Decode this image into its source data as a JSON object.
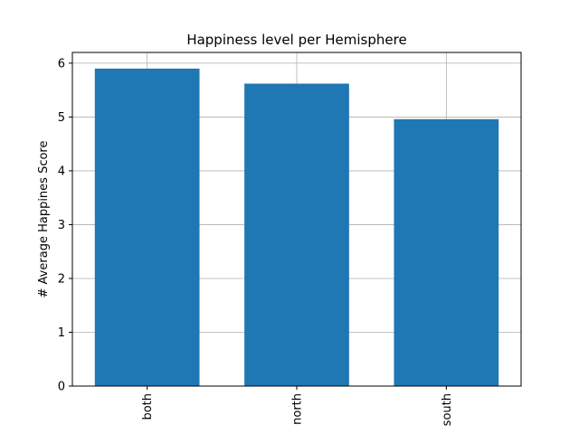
{
  "chart_data": {
    "type": "bar",
    "title": "Happiness level per Hemisphere",
    "xlabel": "",
    "ylabel": "# Average Happines Score",
    "categories": [
      "both",
      "north",
      "south"
    ],
    "values": [
      5.9,
      5.62,
      4.96
    ],
    "ylim": [
      0,
      6.2
    ],
    "yticks": [
      0,
      1,
      2,
      3,
      4,
      5,
      6
    ],
    "grid": true,
    "legend": "none",
    "x_tick_rotation": "vertical",
    "colors": {
      "bar": "#1f77b4",
      "grid": "#b0b0b0",
      "axis": "#000000"
    }
  }
}
